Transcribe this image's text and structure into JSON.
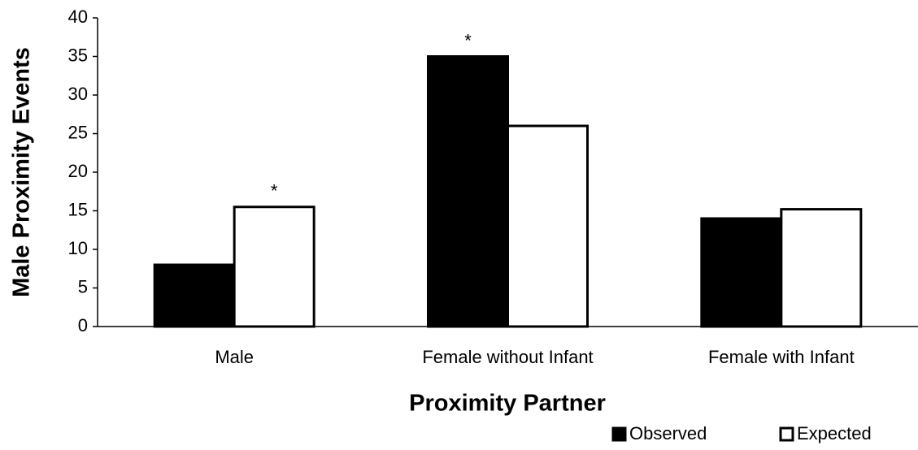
{
  "chart_data": {
    "type": "bar",
    "categories": [
      "Male",
      "Female without Infant",
      "Female with Infant"
    ],
    "series": [
      {
        "name": "Observed",
        "color": "#000000",
        "values": [
          8,
          35,
          14
        ]
      },
      {
        "name": "Expected",
        "color": "#ffffff",
        "values": [
          15.5,
          26,
          15.2
        ]
      }
    ],
    "x_label": "Proximity Partner",
    "y_label": "Male Proximity Events",
    "ylim": [
      0,
      40
    ],
    "yticks": [
      0,
      5,
      10,
      15,
      20,
      25,
      30,
      35,
      40
    ],
    "annotations": [
      {
        "text": "*",
        "category": "Male",
        "series": "Expected"
      },
      {
        "text": "*",
        "category": "Female without Infant",
        "series": "Observed"
      }
    ],
    "legend": "bottom-right",
    "grid": false
  }
}
